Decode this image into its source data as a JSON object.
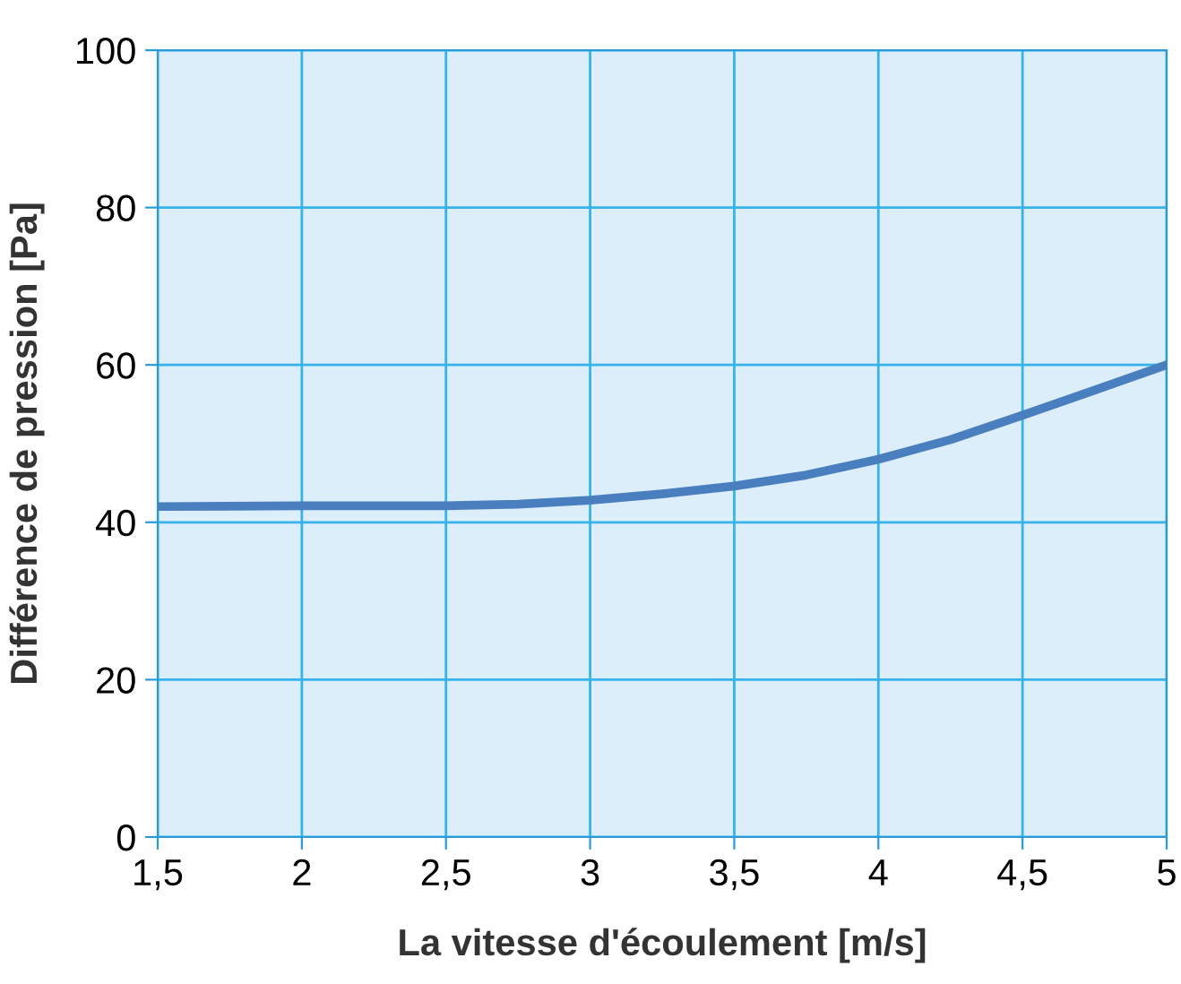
{
  "chart_data": {
    "type": "line",
    "xlabel": "La vitesse d'écoulement [m/s]",
    "ylabel": "Différence de pression [Pa]",
    "x": [
      1.5,
      2,
      2.5,
      2.75,
      3,
      3.25,
      3.5,
      3.75,
      4,
      4.25,
      4.5,
      4.75,
      5
    ],
    "series": [
      {
        "color": "#4a7fbf",
        "values": [
          42,
          42.1,
          42.1,
          42.3,
          42.8,
          43.6,
          44.6,
          46,
          48,
          50.5,
          53.6,
          56.8,
          60
        ]
      }
    ],
    "xlim": [
      1.5,
      5
    ],
    "xticks": [
      {
        "value": 1.5,
        "label": "1,5"
      },
      2,
      {
        "value": 2.5,
        "label": "2,5"
      },
      3,
      {
        "value": 3.5,
        "label": "3,5"
      },
      4,
      {
        "value": 4.5,
        "label": "4,5"
      },
      5
    ],
    "ylim": [
      0,
      100
    ],
    "yticks": [
      0,
      20,
      40,
      60,
      80,
      100
    ],
    "grid": true,
    "marker": "none",
    "line_style": "solid"
  }
}
